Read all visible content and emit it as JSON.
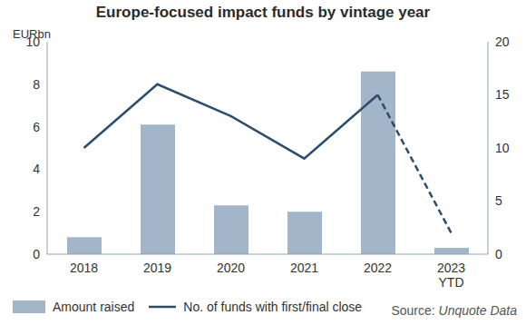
{
  "chart_data": {
    "type": "bar",
    "title": "Europe-focused impact funds by vintage year",
    "y_label": "EURbn",
    "categories": [
      "2018",
      "2019",
      "2020",
      "2021",
      "2022",
      "2023 YTD"
    ],
    "series": [
      {
        "name": "Amount raised",
        "type": "bar",
        "color": "#a3b5c8",
        "values": [
          0.8,
          6.1,
          2.3,
          2.0,
          8.6,
          0.3
        ]
      },
      {
        "name": "No. of funds with first/final close",
        "type": "line",
        "color": "#2e4d6b",
        "axis": "y2",
        "values": [
          10,
          16,
          13,
          9,
          15,
          2
        ]
      }
    ],
    "ylim": [
      0,
      10
    ],
    "yticks": [
      0,
      2,
      4,
      6,
      8,
      10
    ],
    "y2lim": [
      0,
      20
    ],
    "y2ticks": [
      0,
      5,
      10,
      15,
      20
    ],
    "grid": false,
    "legend": "bottom",
    "source": {
      "label": "Source:",
      "name": "Unquote Data"
    }
  }
}
